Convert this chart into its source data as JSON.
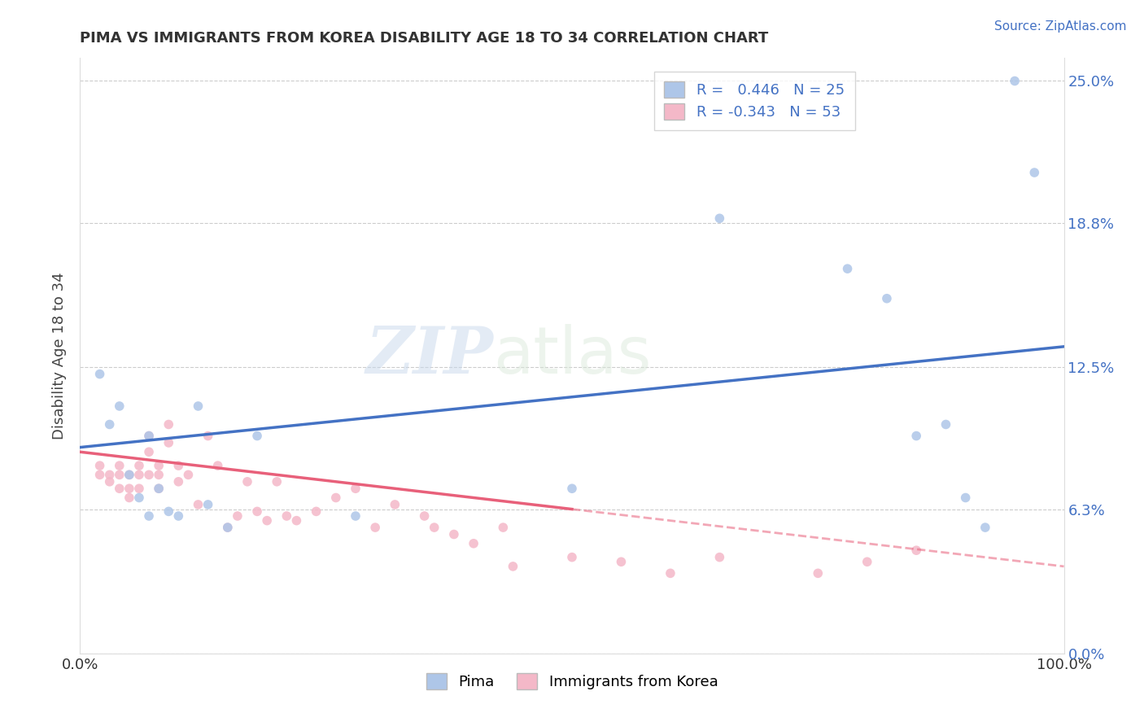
{
  "title": "PIMA VS IMMIGRANTS FROM KOREA DISABILITY AGE 18 TO 34 CORRELATION CHART",
  "source_text": "Source: ZipAtlas.com",
  "ylabel": "Disability Age 18 to 34",
  "xlim": [
    0.0,
    1.0
  ],
  "ylim": [
    0.0,
    0.26
  ],
  "yticks": [
    0.0,
    0.063,
    0.125,
    0.188,
    0.25
  ],
  "ytick_labels": [
    "0.0%",
    "6.3%",
    "12.5%",
    "18.8%",
    "25.0%"
  ],
  "xticks": [
    0.0,
    1.0
  ],
  "xtick_labels": [
    "0.0%",
    "100.0%"
  ],
  "pima_color": "#aec6e8",
  "korea_color": "#f4b8c8",
  "pima_line_color": "#4472c4",
  "korea_line_color": "#e8607a",
  "pima_r": " 0.446",
  "pima_n": "25",
  "korea_r": "-0.343",
  "korea_n": "53",
  "pima_scatter": [
    [
      0.02,
      0.122
    ],
    [
      0.03,
      0.1
    ],
    [
      0.04,
      0.108
    ],
    [
      0.06,
      0.068
    ],
    [
      0.07,
      0.06
    ],
    [
      0.07,
      0.095
    ],
    [
      0.08,
      0.072
    ],
    [
      0.09,
      0.062
    ],
    [
      0.1,
      0.06
    ],
    [
      0.12,
      0.108
    ],
    [
      0.13,
      0.065
    ],
    [
      0.15,
      0.055
    ],
    [
      0.18,
      0.095
    ],
    [
      0.28,
      0.06
    ],
    [
      0.5,
      0.072
    ],
    [
      0.65,
      0.19
    ],
    [
      0.78,
      0.168
    ],
    [
      0.82,
      0.155
    ],
    [
      0.85,
      0.095
    ],
    [
      0.88,
      0.1
    ],
    [
      0.9,
      0.068
    ],
    [
      0.92,
      0.055
    ],
    [
      0.95,
      0.25
    ],
    [
      0.97,
      0.21
    ],
    [
      0.05,
      0.078
    ]
  ],
  "korea_scatter": [
    [
      0.02,
      0.082
    ],
    [
      0.02,
      0.078
    ],
    [
      0.03,
      0.078
    ],
    [
      0.03,
      0.075
    ],
    [
      0.04,
      0.082
    ],
    [
      0.04,
      0.078
    ],
    [
      0.04,
      0.072
    ],
    [
      0.05,
      0.078
    ],
    [
      0.05,
      0.072
    ],
    [
      0.05,
      0.068
    ],
    [
      0.06,
      0.082
    ],
    [
      0.06,
      0.078
    ],
    [
      0.06,
      0.072
    ],
    [
      0.07,
      0.095
    ],
    [
      0.07,
      0.088
    ],
    [
      0.07,
      0.078
    ],
    [
      0.08,
      0.082
    ],
    [
      0.08,
      0.078
    ],
    [
      0.08,
      0.072
    ],
    [
      0.09,
      0.1
    ],
    [
      0.09,
      0.092
    ],
    [
      0.1,
      0.082
    ],
    [
      0.1,
      0.075
    ],
    [
      0.11,
      0.078
    ],
    [
      0.12,
      0.065
    ],
    [
      0.13,
      0.095
    ],
    [
      0.14,
      0.082
    ],
    [
      0.15,
      0.055
    ],
    [
      0.16,
      0.06
    ],
    [
      0.17,
      0.075
    ],
    [
      0.18,
      0.062
    ],
    [
      0.19,
      0.058
    ],
    [
      0.2,
      0.075
    ],
    [
      0.21,
      0.06
    ],
    [
      0.22,
      0.058
    ],
    [
      0.24,
      0.062
    ],
    [
      0.26,
      0.068
    ],
    [
      0.28,
      0.072
    ],
    [
      0.3,
      0.055
    ],
    [
      0.32,
      0.065
    ],
    [
      0.35,
      0.06
    ],
    [
      0.36,
      0.055
    ],
    [
      0.38,
      0.052
    ],
    [
      0.4,
      0.048
    ],
    [
      0.43,
      0.055
    ],
    [
      0.44,
      0.038
    ],
    [
      0.5,
      0.042
    ],
    [
      0.55,
      0.04
    ],
    [
      0.6,
      0.035
    ],
    [
      0.65,
      0.042
    ],
    [
      0.75,
      0.035
    ],
    [
      0.8,
      0.04
    ],
    [
      0.85,
      0.045
    ]
  ],
  "watermark_zip": "ZIP",
  "watermark_atlas": "atlas",
  "background_color": "#ffffff",
  "grid_color": "#cccccc",
  "title_color": "#333333",
  "marker_size": 70,
  "pima_trend": [
    0.0,
    0.09,
    1.0,
    0.134
  ],
  "korea_trend_solid_end": 0.5,
  "korea_trend": [
    0.0,
    0.088,
    1.0,
    0.038
  ]
}
